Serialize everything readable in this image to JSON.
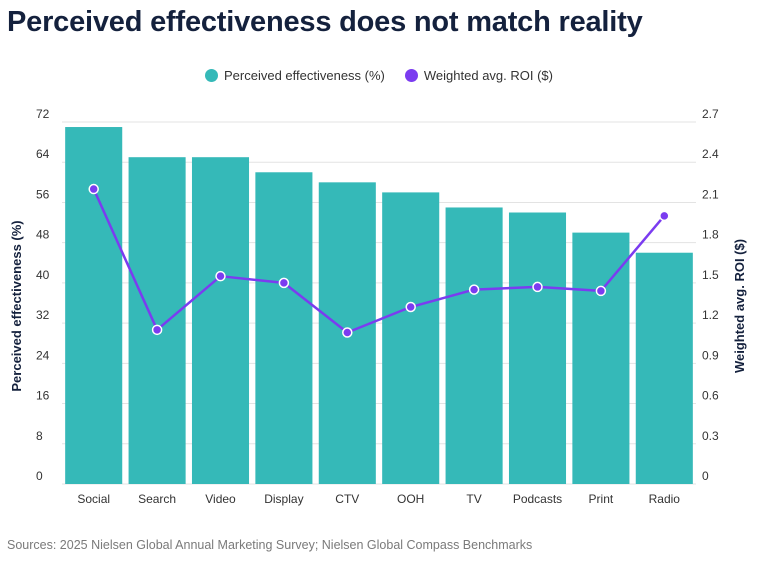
{
  "title": "Perceived effectiveness does not match reality",
  "source": "Sources: 2025 Nielsen Global Annual Marketing Survey; Nielsen Global Compass Benchmarks",
  "colors": {
    "bar": "#35b9b8",
    "line": "#7b3cf0",
    "title": "#14213d"
  },
  "legend": [
    {
      "label": "Perceived effectiveness (%)",
      "color": "#35b9b8"
    },
    {
      "label": "Weighted avg. ROI ($)",
      "color": "#7b3cf0"
    }
  ],
  "chart_data": {
    "type": "bar",
    "title": "Perceived effectiveness does not match reality",
    "categories": [
      "Social",
      "Search",
      "Video",
      "Display",
      "CTV",
      "OOH",
      "TV",
      "Podcasts",
      "Print",
      "Radio"
    ],
    "series": [
      {
        "name": "Perceived effectiveness (%)",
        "type": "bar",
        "axis": "left",
        "values": [
          71,
          65,
          65,
          62,
          60,
          58,
          55,
          54,
          50,
          46
        ]
      },
      {
        "name": "Weighted avg. ROI ($)",
        "type": "line",
        "axis": "right",
        "values": [
          2.2,
          1.15,
          1.55,
          1.5,
          1.13,
          1.32,
          1.45,
          1.47,
          1.44,
          2.0
        ]
      }
    ],
    "ylabel": "Perceived effectiveness (%)",
    "y2label": "Weighted avg. ROI ($)",
    "ylim": [
      0,
      72
    ],
    "y2lim": [
      0,
      2.7
    ],
    "yticks": [
      "0",
      "8",
      "16",
      "24",
      "32",
      "40",
      "48",
      "56",
      "64",
      "72"
    ],
    "y2ticks": [
      "0",
      "0.3",
      "0.6",
      "0.9",
      "1.2",
      "1.5",
      "1.8",
      "2.1",
      "2.4",
      "2.7"
    ],
    "grid": true
  }
}
